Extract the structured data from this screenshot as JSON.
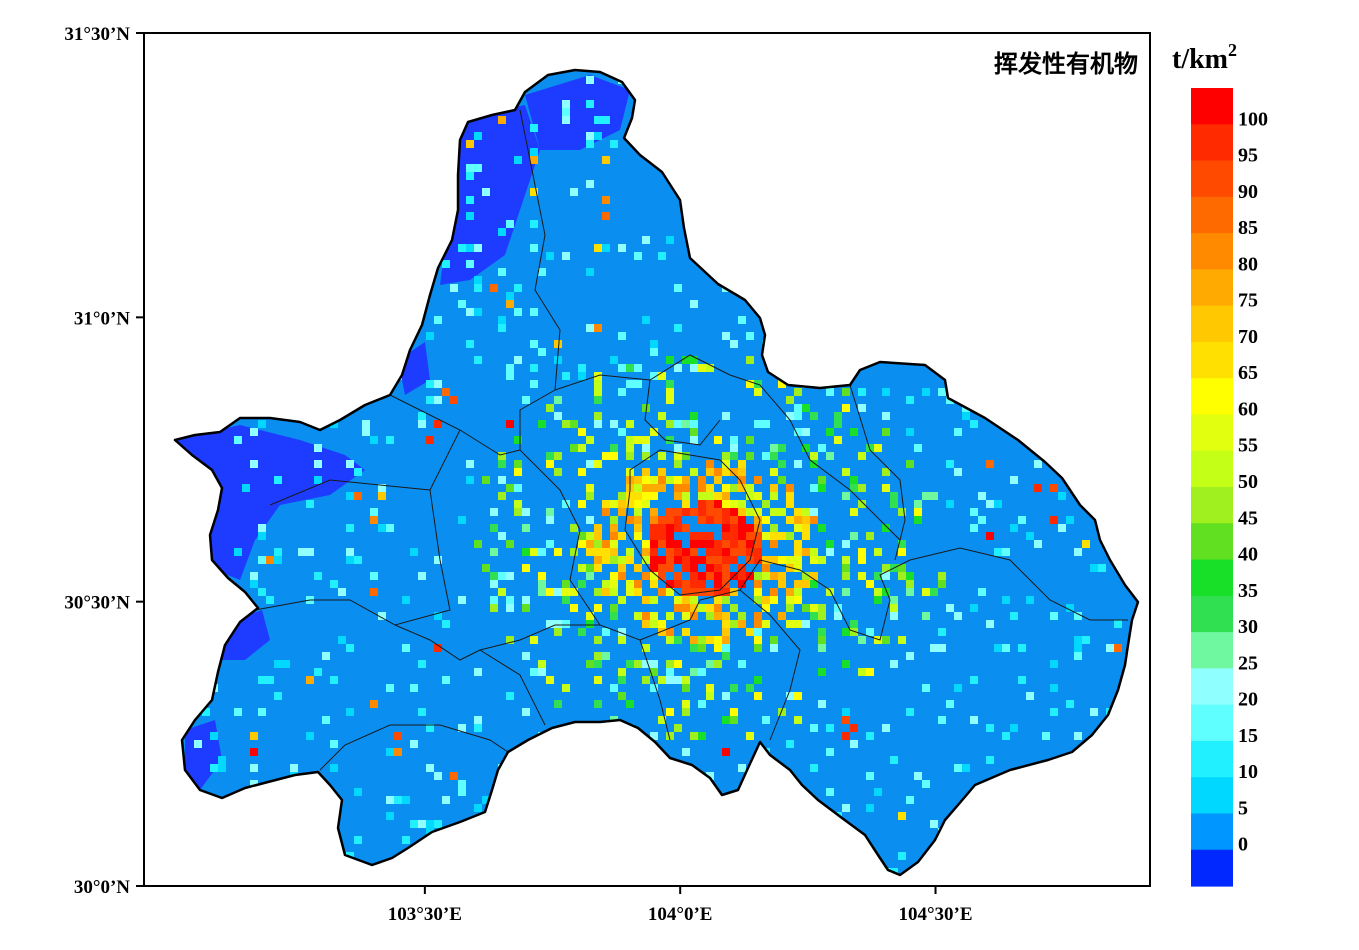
{
  "map": {
    "title": "挥发性有机物",
    "unit_base": "t/km",
    "unit_exp": "2",
    "y_ticks": [
      {
        "label": "31°30’N",
        "lat": 31.5
      },
      {
        "label": "31°0’N",
        "lat": 31.0
      },
      {
        "label": "30°30’N",
        "lat": 30.5
      },
      {
        "label": "30°0’N",
        "lat": 30.0
      }
    ],
    "x_ticks": [
      {
        "label": "103°30’E",
        "lon": 103.5
      },
      {
        "label": "104°0’E",
        "lon": 104.0
      },
      {
        "label": "104°30’E",
        "lon": 104.5
      }
    ],
    "lon_range": [
      102.95,
      104.92
    ],
    "lat_range": [
      30.0,
      31.5
    ]
  },
  "colorbar": {
    "labels": [
      "100",
      "95",
      "90",
      "85",
      "80",
      "75",
      "70",
      "65",
      "60",
      "55",
      "50",
      "45",
      "40",
      "35",
      "30",
      "25",
      "20",
      "15",
      "10",
      "5",
      "0"
    ],
    "colors": [
      "#ff0000",
      "#ff2a00",
      "#ff4a00",
      "#ff6a00",
      "#ff8a00",
      "#ffaa00",
      "#ffc800",
      "#ffe000",
      "#ffff00",
      "#e2ff10",
      "#c4ff18",
      "#a0f020",
      "#60e020",
      "#18e028",
      "#30e050",
      "#70f8a0",
      "#90ffff",
      "#60ffff",
      "#20f0ff",
      "#00d8ff",
      "#0096ff",
      "#0028ff"
    ],
    "ocean_colors": {
      "low": "#1e3cff",
      "base": "#0a8ff0"
    }
  }
}
